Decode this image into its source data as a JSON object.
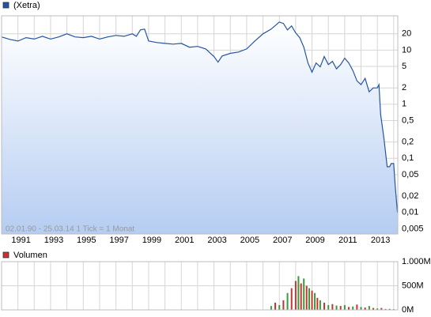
{
  "chart_data": [
    {
      "type": "line",
      "log_y": true,
      "grid": true,
      "caption": "02.01.90 - 25.03.14   1 Tick = 1 Monat",
      "xlim": [
        1990.0,
        2014.25
      ],
      "xticks": [
        1991,
        1993,
        1995,
        1997,
        1999,
        2001,
        2003,
        2005,
        2007,
        2009,
        2011,
        2013
      ],
      "minor_xticks": [
        1990,
        1992,
        1994,
        1996,
        1998,
        2000,
        2002,
        2004,
        2006,
        2008,
        2010,
        2012,
        2014
      ],
      "ylim": [
        0.004,
        43
      ],
      "yticks": [
        20,
        10,
        5,
        2,
        1,
        {
          "value": 0.5,
          "label": "0,5"
        },
        {
          "value": 0.2,
          "label": "0,2"
        },
        {
          "value": 0.1,
          "label": "0,1"
        },
        {
          "value": 0.05,
          "label": "0,05"
        },
        {
          "value": 0.02,
          "label": "0,02"
        },
        {
          "value": 0.01,
          "label": "0,01"
        },
        {
          "value": 0.005,
          "label": "0,005"
        }
      ],
      "x": [
        1990.0,
        1990.5,
        1991.0,
        1991.5,
        1992.0,
        1992.5,
        1993.0,
        1993.5,
        1994.0,
        1994.5,
        1995.0,
        1995.5,
        1996.0,
        1996.5,
        1997.0,
        1997.5,
        1998.0,
        1998.25,
        1998.5,
        1998.75,
        1999.0,
        1999.5,
        2000.0,
        2000.5,
        2001.0,
        2001.5,
        2002.0,
        2002.5,
        2003.0,
        2003.25,
        2003.5,
        2004.0,
        2004.5,
        2005.0,
        2005.5,
        2006.0,
        2006.5,
        2007.0,
        2007.25,
        2007.5,
        2007.75,
        2008.0,
        2008.25,
        2008.5,
        2008.75,
        2009.0,
        2009.25,
        2009.5,
        2009.75,
        2010.0,
        2010.25,
        2010.5,
        2010.75,
        2011.0,
        2011.25,
        2011.5,
        2011.75,
        2012.0,
        2012.25,
        2012.5,
        2012.75,
        2013.0,
        2013.1,
        2013.2,
        2013.4,
        2013.6,
        2013.75,
        2013.85,
        2014.0,
        2014.1,
        2014.23
      ],
      "series": [
        {
          "name": "(Xetra)",
          "color": "#2455a4",
          "values": [
            17.5,
            15.8,
            14.7,
            17,
            16,
            18,
            16,
            17.5,
            20,
            17.5,
            17,
            18,
            16,
            17.5,
            18.7,
            18,
            20,
            18,
            23.6,
            24.4,
            14.7,
            13.8,
            13.3,
            12.9,
            13.3,
            11.3,
            11.7,
            10.5,
            7.6,
            6.0,
            7.8,
            8.7,
            9.2,
            10.5,
            14.7,
            20,
            24.4,
            33,
            31,
            23.6,
            28,
            20.7,
            17,
            11.3,
            5.8,
            3.9,
            5.8,
            4.9,
            7.6,
            5.4,
            6.2,
            4.5,
            5.4,
            7.1,
            5.8,
            4.2,
            2.7,
            2.3,
            3.0,
            1.7,
            2.0,
            2.0,
            2.3,
            0.65,
            0.24,
            0.07,
            0.07,
            0.08,
            0.08,
            0.029,
            0.01
          ]
        }
      ]
    },
    {
      "type": "bar",
      "xlim": [
        1990.0,
        2014.25
      ],
      "ylim": [
        0,
        1000
      ],
      "yticks": [
        {
          "value": 0,
          "label": "0M"
        },
        {
          "value": 500,
          "label": "500M"
        },
        {
          "value": 1000,
          "label": "1.000M"
        }
      ],
      "x": [
        2006.5,
        2006.75,
        2007.0,
        2007.25,
        2007.5,
        2007.75,
        2008.0,
        2008.17,
        2008.33,
        2008.5,
        2008.67,
        2008.83,
        2009.0,
        2009.17,
        2009.33,
        2009.5,
        2009.75,
        2010.0,
        2010.25,
        2010.5,
        2010.75,
        2011.0,
        2011.25,
        2011.5,
        2011.75,
        2012.0,
        2012.25,
        2012.5,
        2012.75,
        2013.0,
        2013.25,
        2013.5,
        2013.75,
        2014.0
      ],
      "series": [
        {
          "name": "Volumen",
          "color": "#c83232",
          "values": [
            80,
            150,
            100,
            200,
            350,
            450,
            600,
            700,
            550,
            650,
            500,
            450,
            400,
            350,
            250,
            200,
            150,
            100,
            120,
            90,
            80,
            100,
            60,
            70,
            110,
            60,
            50,
            80,
            40,
            30,
            40,
            20,
            20,
            15
          ],
          "colors": [
            "#3a9a3a",
            "#c83232",
            "#3a9a3a",
            "#c83232",
            "#3a9a3a",
            "#c83232",
            "#c83232",
            "#3a9a3a",
            "#c83232",
            "#3a9a3a",
            "#c83232",
            "#3a9a3a",
            "#c83232",
            "#3a9a3a",
            "#c83232",
            "#3a9a3a",
            "#c83232",
            "#3a9a3a",
            "#c83232",
            "#3a9a3a",
            "#c83232",
            "#3a9a3a",
            "#c83232",
            "#3a9a3a",
            "#c83232",
            "#3a9a3a",
            "#c83232",
            "#3a9a3a",
            "#c83232",
            "#3a9a3a",
            "#c83232",
            "#3a9a3a",
            "#c83232",
            "#3a9a3a"
          ]
        }
      ]
    }
  ]
}
